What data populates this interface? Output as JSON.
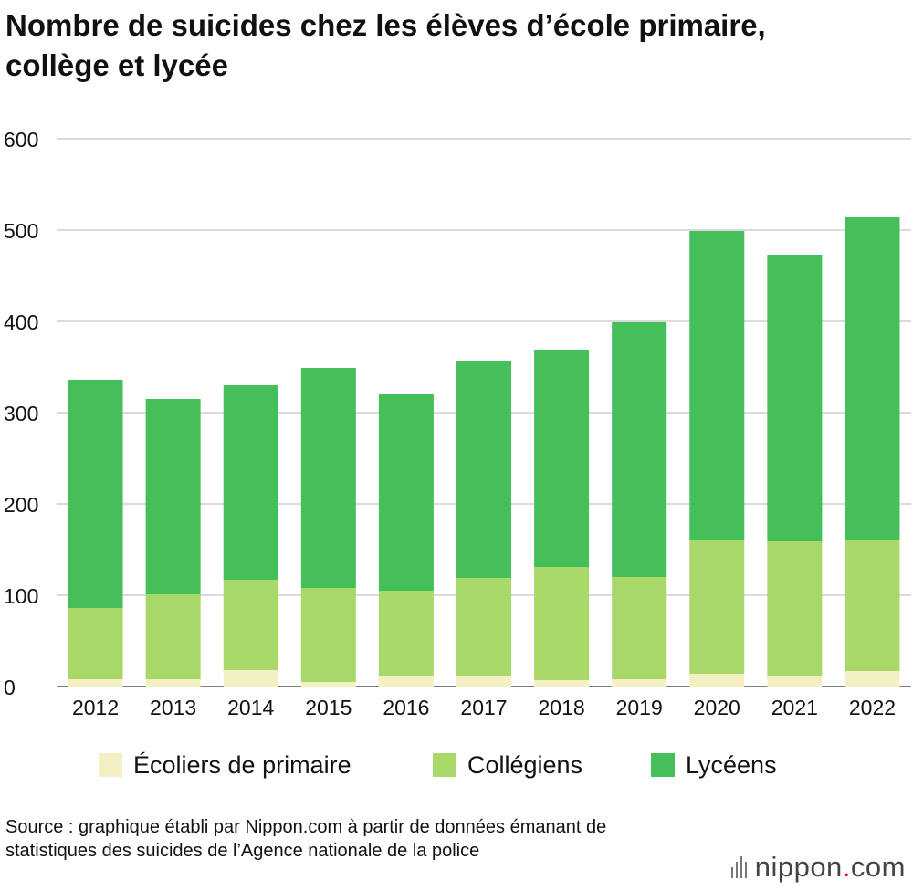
{
  "title": "Nombre de suicides chez les élèves d’école primaire, collège et lycée",
  "legend": [
    {
      "label": "Écoliers de primaire",
      "color": "#f3f0c4"
    },
    {
      "label": "Collégiens",
      "color": "#a8d868"
    },
    {
      "label": "Lycéens",
      "color": "#45bf5a"
    }
  ],
  "source": "Source : graphique établi par Nippon.com à partir de données émanant de statistiques des suicides de l’Agence nationale de la police",
  "logo": {
    "name": "nippon",
    "dot": ".",
    "suffix": "com"
  },
  "chart_data": {
    "type": "bar",
    "stacked": true,
    "title": "Nombre de suicides chez les élèves d’école primaire, collège et lycée",
    "xlabel": "",
    "ylabel": "",
    "ylim": [
      0,
      600
    ],
    "yticks": [
      0,
      100,
      200,
      300,
      400,
      500,
      600
    ],
    "grid": true,
    "legend_position": "bottom",
    "categories": [
      "2012",
      "2013",
      "2014",
      "2015",
      "2016",
      "2017",
      "2018",
      "2019",
      "2020",
      "2021",
      "2022"
    ],
    "series": [
      {
        "name": "Écoliers de primaire",
        "color": "#f3f0c4",
        "values": [
          8,
          8,
          18,
          5,
          12,
          11,
          7,
          8,
          14,
          11,
          17
        ]
      },
      {
        "name": "Collégiens",
        "color": "#a8d868",
        "values": [
          78,
          93,
          99,
          103,
          93,
          108,
          124,
          112,
          146,
          148,
          143
        ]
      },
      {
        "name": "Lycéens",
        "color": "#45bf5a",
        "values": [
          250,
          214,
          213,
          241,
          215,
          238,
          238,
          279,
          339,
          314,
          354
        ]
      }
    ]
  }
}
